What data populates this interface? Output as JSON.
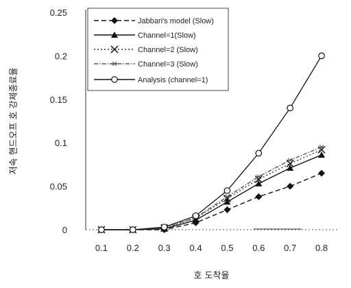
{
  "chart_data": {
    "type": "line",
    "title": "",
    "xlabel": "호 도착율",
    "ylabel": "저속 핸드오프 호 강제종료율",
    "x": [
      0.1,
      0.2,
      0.3,
      0.4,
      0.5,
      0.6,
      0.7,
      0.8
    ],
    "xticks": [
      "0.1",
      "0.2",
      "0.3",
      "0.4",
      "0.5",
      "0.6",
      "0.7",
      "0.8"
    ],
    "xlim": [
      0.05,
      0.85
    ],
    "ylim": [
      0,
      0.25
    ],
    "yticks": [
      "0",
      "0.05",
      "0.1",
      "0.15",
      "0.2",
      "0.25"
    ],
    "grid": false,
    "legend": "top-left",
    "series": [
      {
        "name": "Jabbari's model (Slow)",
        "marker": "diamond",
        "dash": "dashed",
        "values": [
          0.0,
          0.0,
          0.0,
          0.008,
          0.023,
          0.038,
          0.05,
          0.065
        ]
      },
      {
        "name": "Channel=1(Slow)",
        "marker": "triangle",
        "dash": "solid",
        "values": [
          0.0,
          0.0,
          0.001,
          0.011,
          0.032,
          0.053,
          0.071,
          0.086
        ]
      },
      {
        "name": "Channel=2 (Slow)",
        "marker": "x",
        "dash": "dotted",
        "values": [
          0.0,
          0.0,
          0.002,
          0.013,
          0.036,
          0.058,
          0.076,
          0.092
        ]
      },
      {
        "name": "Channel=3 (Slow)",
        "marker": "star",
        "dash": "dashdot",
        "values": [
          0.0,
          0.0,
          0.002,
          0.014,
          0.038,
          0.061,
          0.08,
          0.095
        ]
      },
      {
        "name": "Analysis (channel=1)",
        "marker": "circle",
        "dash": "solid",
        "values": [
          0.0,
          0.0,
          0.003,
          0.016,
          0.045,
          0.088,
          0.14,
          0.2
        ]
      }
    ]
  }
}
